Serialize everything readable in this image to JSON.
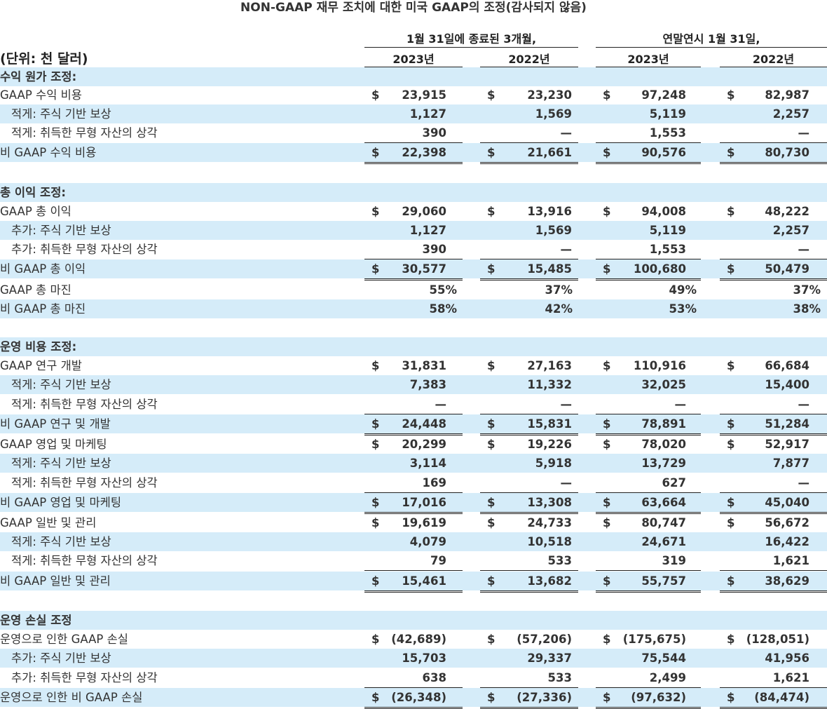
{
  "title": "NON-GAAP 재무 조치에 대한 미국 GAAP의 조정(감사되지 않음)",
  "header": {
    "group1": "1월 31일에 종료된 3개월,",
    "group2": "연말연시 1월 31일,",
    "years": [
      "2023년",
      "2022년",
      "2023년",
      "2022년"
    ],
    "units": "(단위: 천 달러)"
  },
  "rows": [
    {
      "label": "수익 원가 조정:",
      "type": "section"
    },
    {
      "label": "GAAP 수익 비용",
      "values": [
        "23,915",
        "23,230",
        "97,248",
        "82,987"
      ],
      "dollar": true
    },
    {
      "label": "적게: 주식 기반 보상",
      "values": [
        "1,127",
        "1,569",
        "5,119",
        "2,257"
      ],
      "indent": true
    },
    {
      "label": "적게: 취득한 무형 자산의 상각",
      "values": [
        "390",
        "—",
        "1,553",
        "—"
      ],
      "indent": true
    },
    {
      "label": "비 GAAP 수익 비용",
      "values": [
        "22,398",
        "21,661",
        "90,576",
        "80,730"
      ],
      "dollar": true
    },
    {
      "label": "총 이익 조정:",
      "type": "section"
    },
    {
      "label": "GAAP 총 이익",
      "values": [
        "29,060",
        "13,916",
        "94,008",
        "48,222"
      ],
      "dollar": true
    },
    {
      "label": "추가: 주식 기반 보상",
      "values": [
        "1,127",
        "1,569",
        "5,119",
        "2,257"
      ],
      "indent": true
    },
    {
      "label": "추가: 취득한 무형 자산의 상각",
      "values": [
        "390",
        "—",
        "1,553",
        "—"
      ],
      "indent": true
    },
    {
      "label": "비 GAAP 총 이익",
      "values": [
        "30,577",
        "15,485",
        "100,680",
        "50,479"
      ],
      "dollar": true
    },
    {
      "label": "GAAP 총 마진",
      "values": [
        "55%",
        "37%",
        "49%",
        "37%"
      ]
    },
    {
      "label": "비 GAAP 총 마진",
      "values": [
        "58%",
        "42%",
        "53%",
        "38%"
      ]
    },
    {
      "label": "운영 비용 조정:",
      "type": "section"
    },
    {
      "label": "GAAP 연구 개발",
      "values": [
        "31,831",
        "27,163",
        "110,916",
        "66,684"
      ],
      "dollar": true
    },
    {
      "label": "적게: 주식 기반 보상",
      "values": [
        "7,383",
        "11,332",
        "32,025",
        "15,400"
      ],
      "indent": true
    },
    {
      "label": "적게: 취득한 무형 자산의 상각",
      "values": [
        "—",
        "—",
        "—",
        "—"
      ],
      "indent": true
    },
    {
      "label": "비 GAAP 연구 및 개발",
      "values": [
        "24,448",
        "15,831",
        "78,891",
        "51,284"
      ],
      "dollar": true
    },
    {
      "label": "GAAP 영업 및 마케팅",
      "values": [
        "20,299",
        "19,226",
        "78,020",
        "52,917"
      ],
      "dollar": true
    },
    {
      "label": "적게: 주식 기반 보상",
      "values": [
        "3,114",
        "5,918",
        "13,729",
        "7,877"
      ],
      "indent": true
    },
    {
      "label": "적게: 취득한 무형 자산의 상각",
      "values": [
        "169",
        "—",
        "627",
        "—"
      ],
      "indent": true
    },
    {
      "label": "비 GAAP 영업 및 마케팅",
      "values": [
        "17,016",
        "13,308",
        "63,664",
        "45,040"
      ],
      "dollar": true
    },
    {
      "label": "GAAP 일반 및 관리",
      "values": [
        "19,619",
        "24,733",
        "80,747",
        "56,672"
      ],
      "dollar": true
    },
    {
      "label": "적게: 주식 기반 보상",
      "values": [
        "4,079",
        "10,518",
        "24,671",
        "16,422"
      ],
      "indent": true
    },
    {
      "label": "적게: 취득한 무형 자산의 상각",
      "values": [
        "79",
        "533",
        "319",
        "1,621"
      ],
      "indent": true
    },
    {
      "label": "비 GAAP 일반 및 관리",
      "values": [
        "15,461",
        "13,682",
        "55,757",
        "38,629"
      ],
      "dollar": true
    },
    {
      "label": "운영 손실 조정",
      "type": "section"
    },
    {
      "label": "운영으로 인한 GAAP 손실",
      "values": [
        "(42,689)",
        "(57,206)",
        "(175,675)",
        "(128,051)"
      ],
      "dollar": true
    },
    {
      "label": "추가: 주식 기반 보상",
      "values": [
        "15,703",
        "29,337",
        "75,544",
        "41,956"
      ],
      "indent": true
    },
    {
      "label": "추가: 취득한 무형 자산의 상각",
      "values": [
        "638",
        "533",
        "2,499",
        "1,621"
      ],
      "indent": true
    },
    {
      "label": "운영으로 인한 비 GAAP 손실",
      "values": [
        "(26,348)",
        "(27,336)",
        "(97,632)",
        "(84,474)"
      ],
      "dollar": true
    }
  ],
  "currency_symbol": "$"
}
